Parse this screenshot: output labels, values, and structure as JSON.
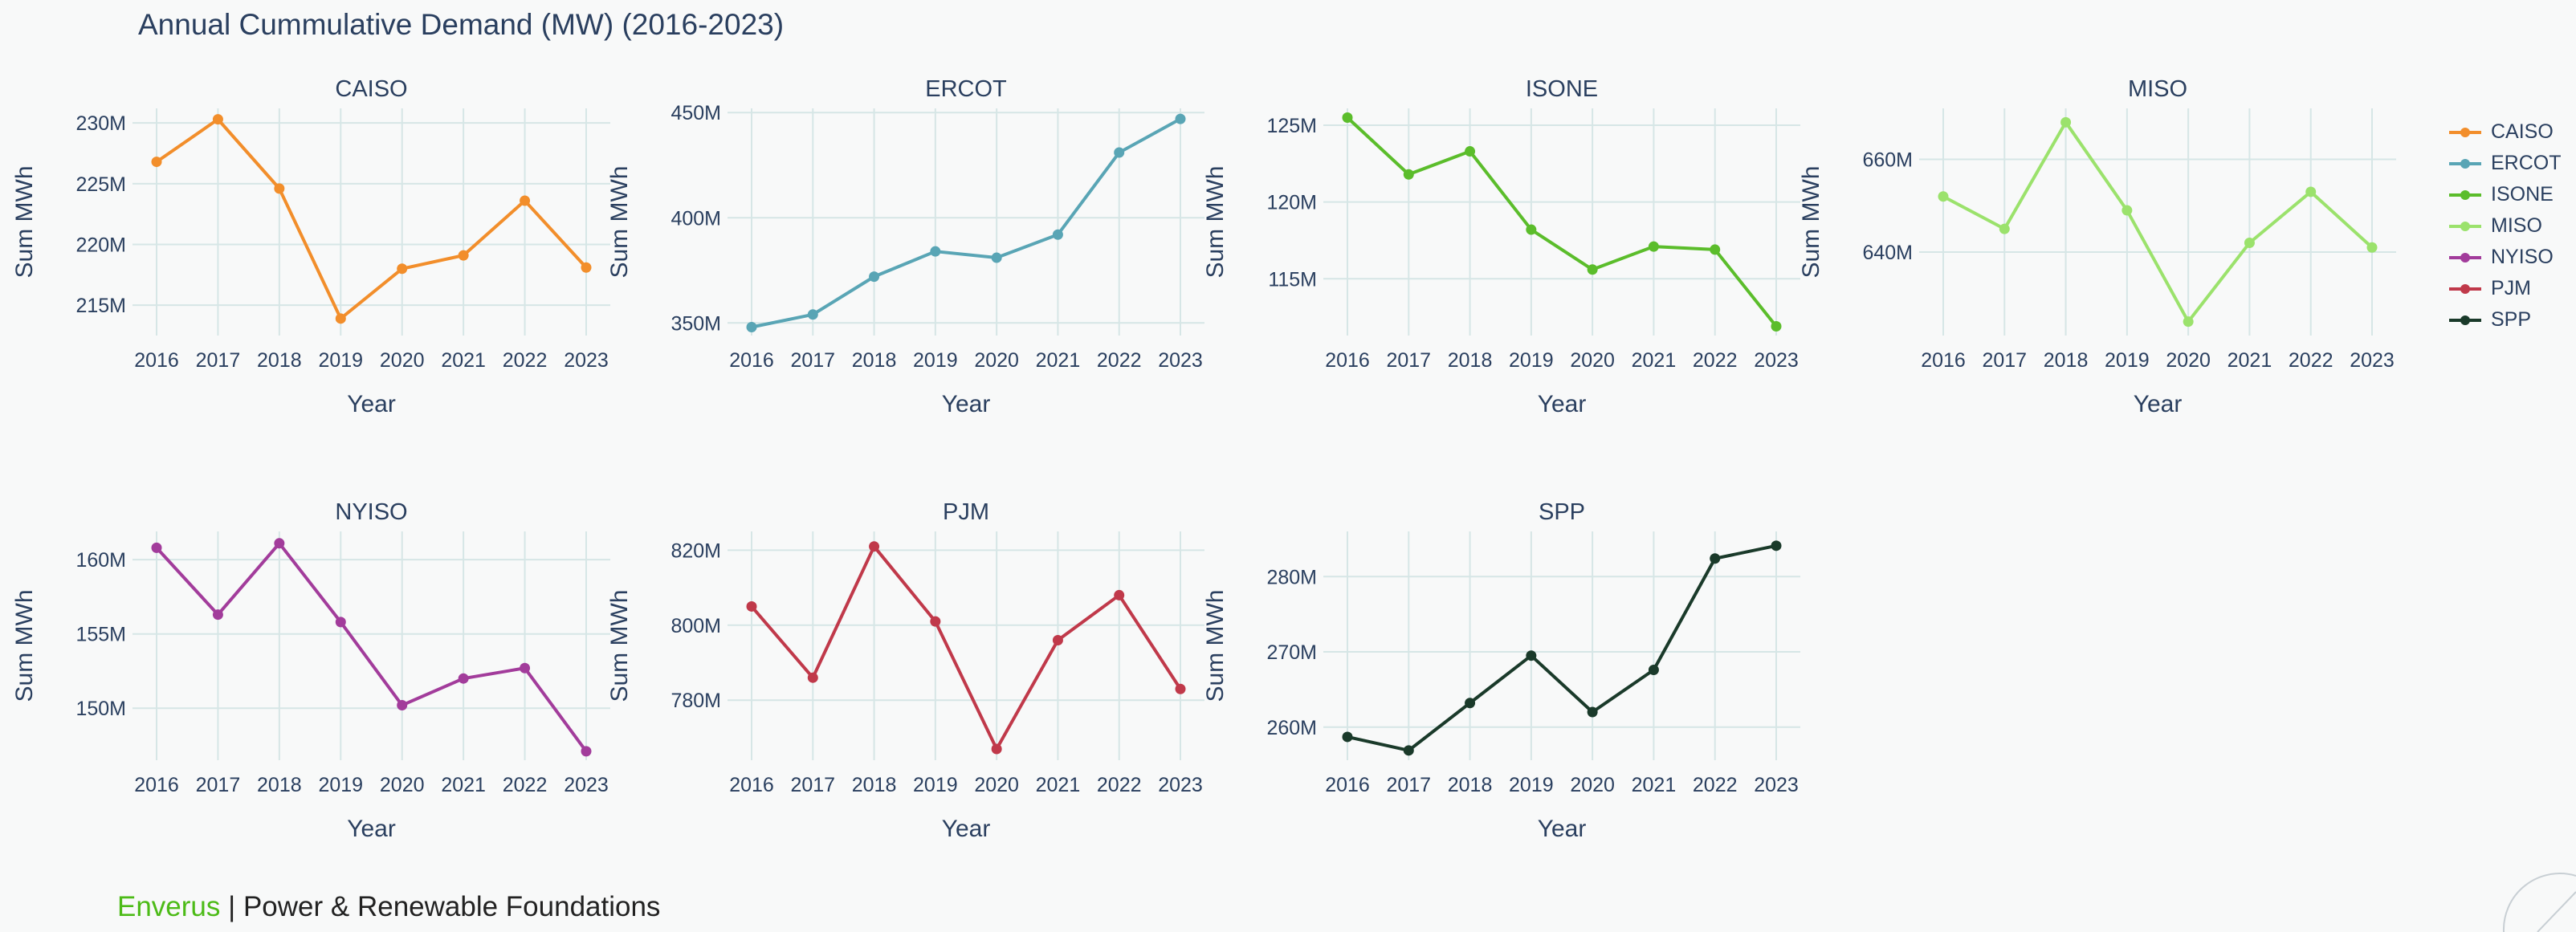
{
  "title": "Annual Cummulative Demand (MW) (2016-2023)",
  "footer": {
    "brand": "Enverus",
    "separator": " | ",
    "subtitle": "Power & Renewable Foundations"
  },
  "chart_data": {
    "type": "line",
    "x": [
      2016,
      2017,
      2018,
      2019,
      2020,
      2021,
      2022,
      2023
    ],
    "xlabel": "Year",
    "ylabel": "Sum MWh",
    "grid": true,
    "legend_position": "right",
    "series": [
      {
        "name": "CAISO",
        "color": "#f28e2b",
        "values": [
          226.8,
          230.3,
          224.6,
          213.9,
          218.0,
          219.1,
          223.6,
          218.1
        ],
        "ylim": [
          212.5,
          231.2
        ],
        "ticks": [
          215,
          220,
          225,
          230
        ]
      },
      {
        "name": "ERCOT",
        "color": "#59a5b5",
        "values": [
          348,
          354,
          372,
          384,
          381,
          392,
          431,
          447
        ],
        "ylim": [
          344,
          452
        ],
        "ticks": [
          350,
          400,
          450
        ]
      },
      {
        "name": "ISONE",
        "color": "#5bbd2b",
        "values": [
          125.5,
          121.8,
          123.3,
          118.2,
          115.6,
          117.1,
          116.9,
          111.9
        ],
        "ylim": [
          111.3,
          126.1
        ],
        "ticks": [
          115,
          120,
          125
        ]
      },
      {
        "name": "MISO",
        "color": "#9be26c",
        "values": [
          652,
          645,
          668,
          649,
          625,
          642,
          653,
          641
        ],
        "ylim": [
          622,
          671
        ],
        "ticks": [
          640,
          660
        ]
      },
      {
        "name": "NYISO",
        "color": "#a23c9b",
        "values": [
          160.8,
          156.3,
          161.1,
          155.8,
          150.2,
          152.0,
          152.7,
          147.1
        ],
        "ylim": [
          146.5,
          161.9
        ],
        "ticks": [
          150,
          155,
          160
        ]
      },
      {
        "name": "PJM",
        "color": "#c0394a",
        "values": [
          805,
          786,
          821,
          801,
          767,
          796,
          808,
          783
        ],
        "ylim": [
          764,
          825
        ],
        "ticks": [
          780,
          800,
          820
        ]
      },
      {
        "name": "SPP",
        "color": "#1a3a2a",
        "values": [
          258.7,
          256.9,
          263.2,
          269.5,
          262.0,
          267.6,
          282.4,
          284.1
        ],
        "ylim": [
          255.6,
          286.0
        ],
        "ticks": [
          260,
          270,
          280
        ]
      }
    ]
  }
}
